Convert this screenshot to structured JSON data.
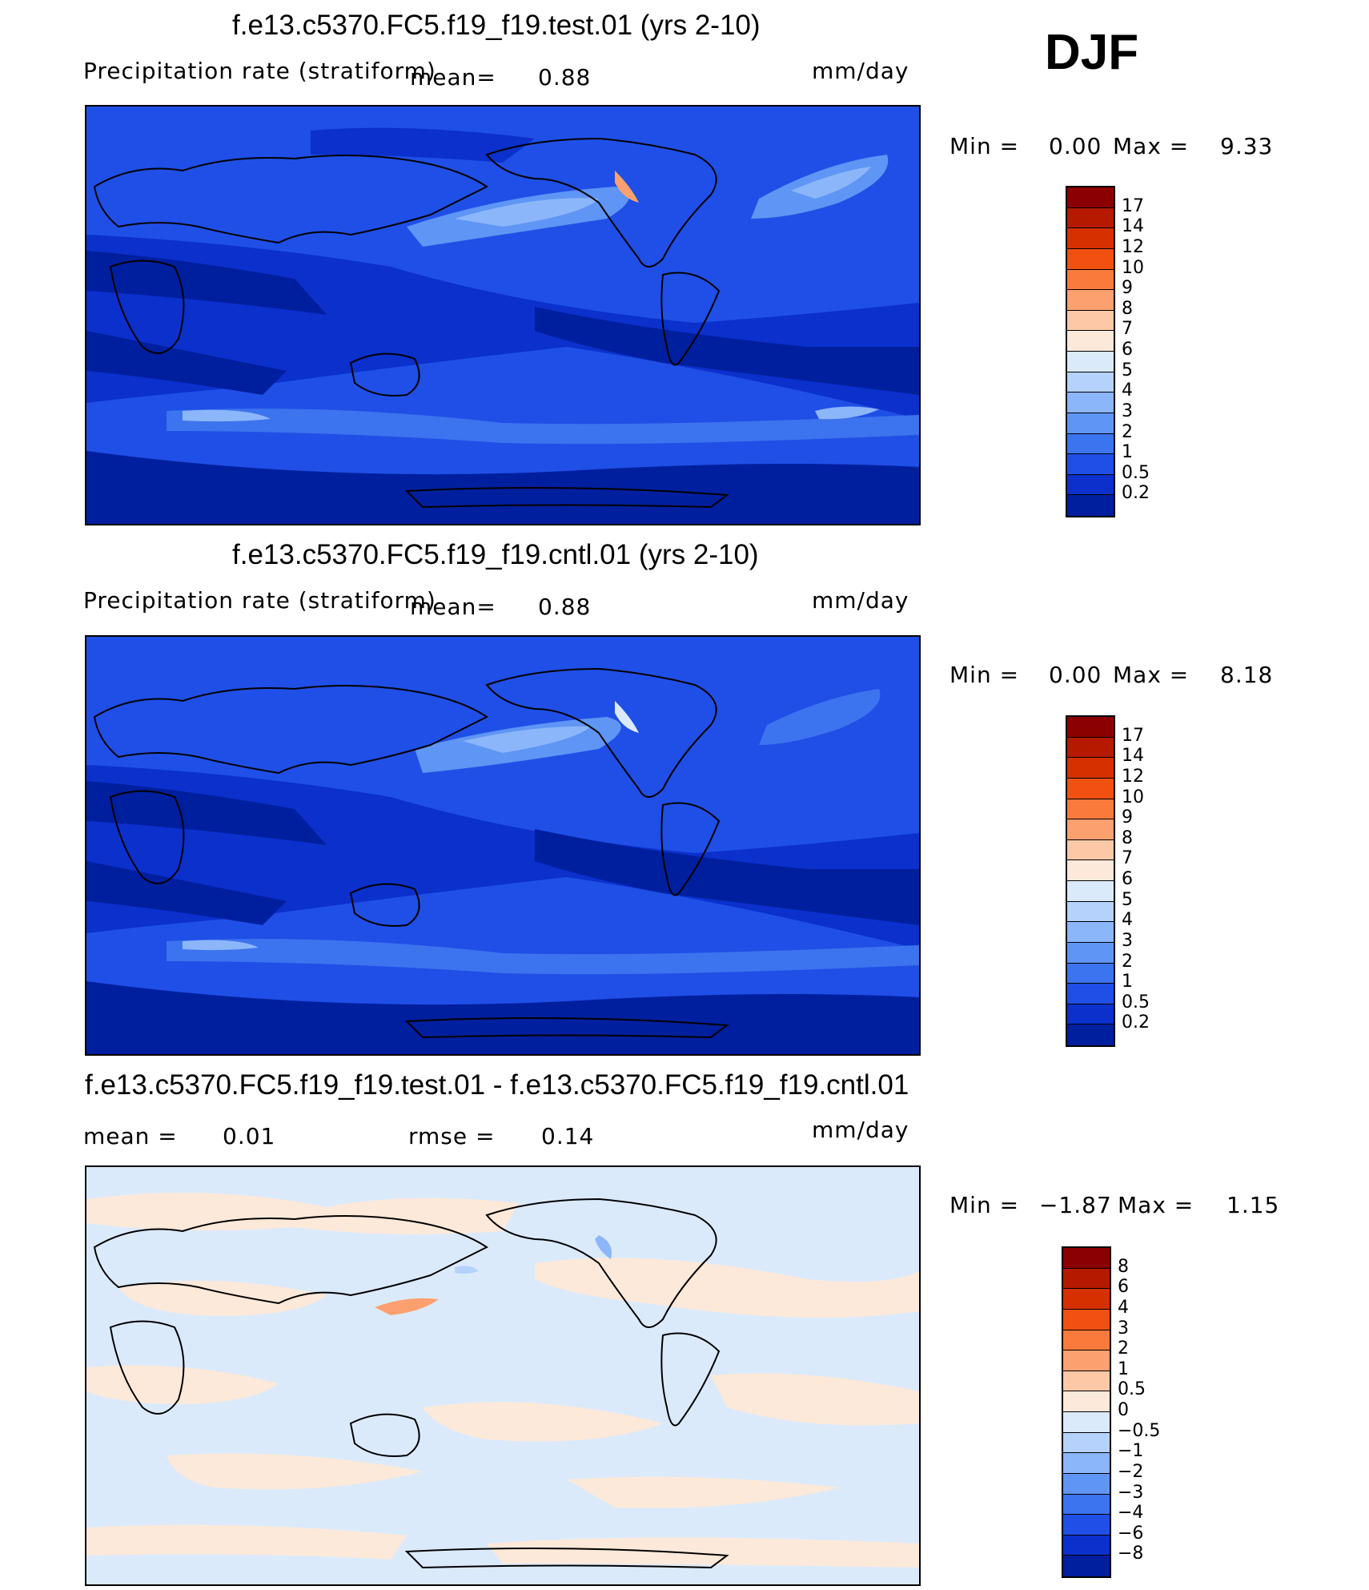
{
  "season": "DJF",
  "panels": [
    {
      "title": "f.e13.c5370.FC5.f19_f19.test.01 (yrs 2-10)",
      "variable": "Precipitation rate (stratiform)",
      "mean_label": "mean=",
      "mean_value": "0.88",
      "units": "mm/day",
      "min_label": "Min =",
      "min_value": "0.00",
      "max_label": "Max =",
      "max_value": "9.33",
      "colorbar": {
        "colors": [
          "#8b0000",
          "#b51a00",
          "#d63000",
          "#f05010",
          "#fa7a3c",
          "#fca070",
          "#fdc8a6",
          "#fde9d9",
          "#dbeafb",
          "#b4d2fb",
          "#8cb6fa",
          "#5f95f4",
          "#3c73ee",
          "#1f4fe6",
          "#0b30cc",
          "#001f9e"
        ],
        "labels": [
          "17",
          "14",
          "12",
          "10",
          "9",
          "8",
          "7",
          "6",
          "5",
          "4",
          "3",
          "2",
          "1",
          "0.5",
          "0.2"
        ]
      }
    },
    {
      "title": "f.e13.c5370.FC5.f19_f19.cntl.01 (yrs 2-10)",
      "variable": "Precipitation rate (stratiform)",
      "mean_label": "mean=",
      "mean_value": "0.88",
      "units": "mm/day",
      "min_label": "Min =",
      "min_value": "0.00",
      "max_label": "Max =",
      "max_value": "8.18",
      "colorbar": {
        "colors": [
          "#8b0000",
          "#b51a00",
          "#d63000",
          "#f05010",
          "#fa7a3c",
          "#fca070",
          "#fdc8a6",
          "#fde9d9",
          "#dbeafb",
          "#b4d2fb",
          "#8cb6fa",
          "#5f95f4",
          "#3c73ee",
          "#1f4fe6",
          "#0b30cc",
          "#001f9e"
        ],
        "labels": [
          "17",
          "14",
          "12",
          "10",
          "9",
          "8",
          "7",
          "6",
          "5",
          "4",
          "3",
          "2",
          "1",
          "0.5",
          "0.2"
        ]
      }
    },
    {
      "title": "f.e13.c5370.FC5.f19_f19.test.01 - f.e13.c5370.FC5.f19_f19.cntl.01",
      "mean_label": "mean =",
      "mean_value": "0.01",
      "rmse_label": "rmse =",
      "rmse_value": "0.14",
      "units": "mm/day",
      "min_label": "Min =",
      "min_value": "−1.87",
      "max_label": "Max =",
      "max_value": "1.15",
      "colorbar": {
        "colors": [
          "#8b0000",
          "#b51a00",
          "#d63000",
          "#f05010",
          "#fa7a3c",
          "#fca070",
          "#fdc8a6",
          "#fde9d9",
          "#dbeafb",
          "#b4d2fb",
          "#8cb6fa",
          "#5f95f4",
          "#3c73ee",
          "#1f4fe6",
          "#0b30cc",
          "#001f9e"
        ],
        "labels": [
          "8",
          "6",
          "4",
          "3",
          "2",
          "1",
          "0.5",
          "0",
          "−0.5",
          "−1",
          "−2",
          "−3",
          "−4",
          "−6",
          "−8"
        ]
      }
    }
  ]
}
